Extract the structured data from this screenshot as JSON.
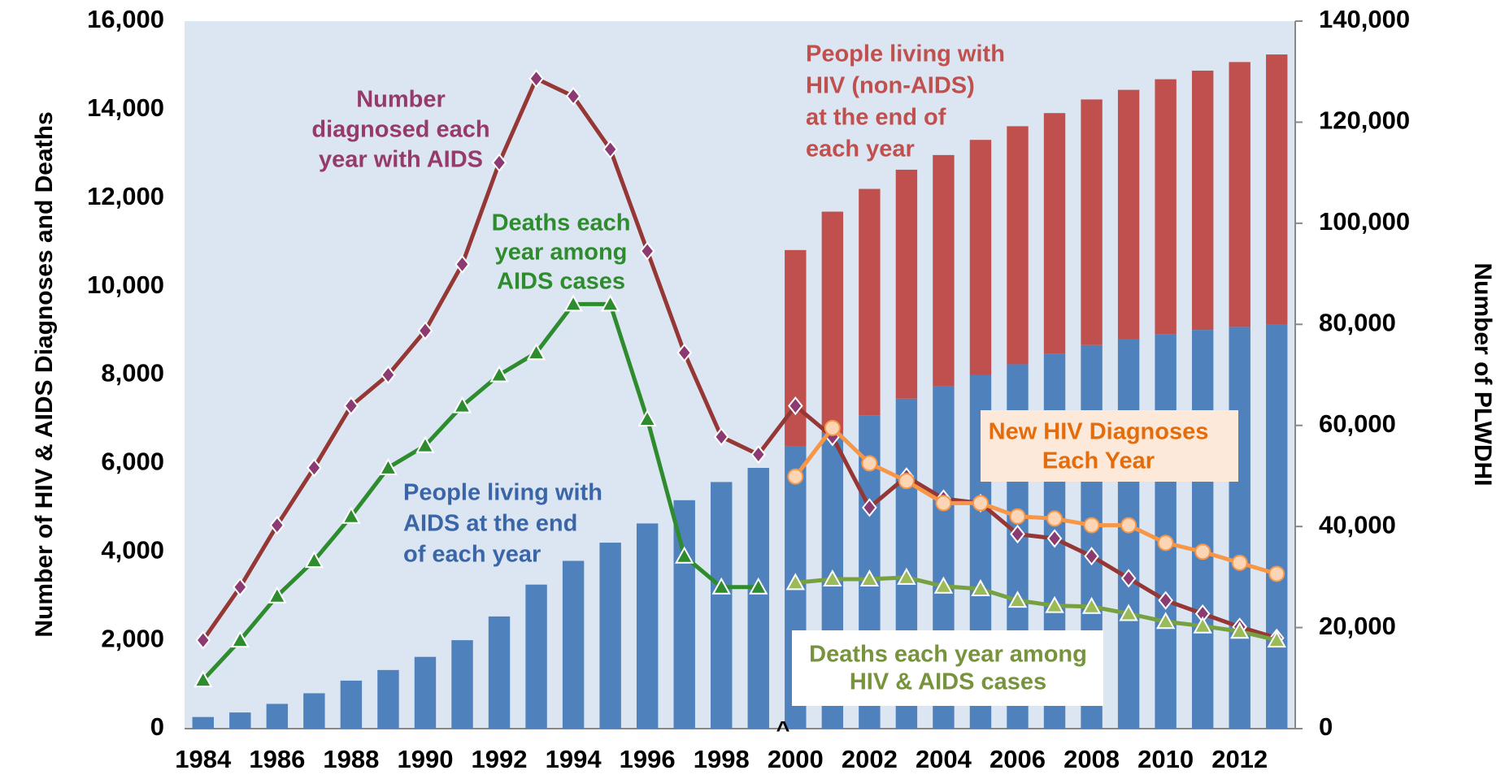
{
  "chart_data": {
    "type": "bar",
    "y_label": "Number of HIV & AIDS Diagnoses and Deaths",
    "y2_label": "Number of PLWDHI",
    "categories": [
      "1984",
      null,
      "1986",
      null,
      "1988",
      null,
      "1990",
      null,
      "1992",
      null,
      "1994",
      null,
      "1996",
      null,
      "1998",
      null,
      "2000",
      null,
      "2002",
      null,
      "2004",
      null,
      "2006",
      null,
      "2008",
      null,
      "2010",
      null,
      "2012",
      null
    ],
    "ylim": [
      0,
      16000
    ],
    "yticks": [
      0,
      {
        "value": 2000,
        "label": "2,000"
      },
      {
        "value": 4000,
        "label": "4,000"
      },
      {
        "value": 6000,
        "label": "6,000"
      },
      {
        "value": 8000,
        "label": "8,000"
      },
      {
        "value": 10000,
        "label": "10,000"
      },
      {
        "value": 12000,
        "label": "12,000"
      },
      {
        "value": 14000,
        "label": "14,000"
      },
      {
        "value": 16000,
        "label": "16,000"
      }
    ],
    "y2lim": [
      0,
      140000
    ],
    "y2ticks": [
      0,
      {
        "value": 20000,
        "label": "20,000"
      },
      {
        "value": 40000,
        "label": "40,000"
      },
      {
        "value": 60000,
        "label": "60,000"
      },
      {
        "value": 80000,
        "label": "80,000"
      },
      {
        "value": 100000,
        "label": "100,000"
      },
      {
        "value": 120000,
        "label": "120,000"
      },
      {
        "value": 140000,
        "label": "140,000"
      }
    ],
    "series": [
      {
        "name": "People living with AIDS at the end of each year",
        "type": "bar",
        "axis": "y2",
        "color": "#4f81bd",
        "values": [
          2300,
          3200,
          4900,
          7000,
          9500,
          11600,
          14200,
          17500,
          22200,
          28500,
          33200,
          36800,
          40600,
          45200,
          48800,
          51600,
          55800,
          58400,
          62000,
          65300,
          67700,
          70000,
          72100,
          74200,
          75900,
          77000,
          78000,
          78900,
          79500,
          79900
        ]
      },
      {
        "name": "People living with HIV (non-AIDS) at the end of each year",
        "type": "bar",
        "axis": "y2",
        "color": "#c0504d",
        "values": [
          null,
          null,
          null,
          null,
          null,
          null,
          null,
          null,
          null,
          null,
          null,
          null,
          null,
          null,
          null,
          null,
          38900,
          43900,
          44800,
          45300,
          45800,
          46500,
          47100,
          47600,
          48600,
          49400,
          50500,
          51300,
          52400,
          53500
        ]
      },
      {
        "name": "Number diagnosed each year with AIDS",
        "type": "line",
        "marker": "diamond",
        "color": "#953735",
        "marker_color": "#8b3a72",
        "values": [
          2000,
          3200,
          4600,
          5900,
          7300,
          8000,
          9000,
          10500,
          12800,
          14700,
          14300,
          13100,
          10800,
          8500,
          6600,
          6200,
          7300,
          6600,
          5000,
          5700,
          5200,
          5100,
          4400,
          4300,
          3900,
          3400,
          2900,
          2600,
          2300,
          2050
        ]
      },
      {
        "name": "Deaths each year among AIDS cases",
        "type": "line",
        "marker": "triangle",
        "color": "#2e8b2e",
        "marker_color": "#2e8b2e",
        "values": [
          1100,
          2000,
          3000,
          3800,
          4800,
          5900,
          6400,
          7300,
          8000,
          8500,
          9600,
          9600,
          7000,
          3900,
          3200,
          3200,
          null,
          null,
          null,
          null,
          null,
          null,
          null,
          null,
          null,
          null,
          null,
          null,
          null,
          null
        ]
      },
      {
        "name": "Deaths each year among HIV & AIDS cases",
        "type": "line",
        "marker": "triangle",
        "color": "#77a040",
        "marker_color": "#9bbb59",
        "values": [
          null,
          null,
          null,
          null,
          null,
          null,
          null,
          null,
          null,
          null,
          null,
          null,
          null,
          null,
          null,
          null,
          3300,
          3380,
          3380,
          3420,
          3220,
          3160,
          2900,
          2780,
          2760,
          2600,
          2420,
          2320,
          2200,
          2000
        ]
      },
      {
        "name": "New HIV Diagnoses Each Year",
        "type": "line",
        "marker": "circle",
        "color": "#f79646",
        "marker_color": "#fcd5b4",
        "values": [
          null,
          null,
          null,
          null,
          null,
          null,
          null,
          null,
          null,
          null,
          null,
          null,
          null,
          null,
          null,
          null,
          5700,
          6800,
          6000,
          5600,
          5100,
          5100,
          4800,
          4750,
          4600,
          4600,
          4200,
          4000,
          3750,
          3500
        ]
      }
    ],
    "annotations": [
      {
        "lines": [
          "Number",
          "diagnosed each",
          "year with AIDS"
        ],
        "color": "#953a6a"
      },
      {
        "lines": [
          "Deaths each",
          "year among",
          "AIDS cases"
        ],
        "color": "#2e8b2e"
      },
      {
        "lines": [
          "People living with",
          "AIDS at the end",
          "of each year"
        ],
        "color": "#3a66a8"
      },
      {
        "lines": [
          "People living with",
          "HIV (non-AIDS)",
          "at the end of",
          "each year"
        ],
        "color": "#c0504d"
      },
      {
        "lines": [
          "New HIV Diagnoses",
          "Each Year"
        ],
        "color": "#e46c0a",
        "box": "#fde9d9"
      },
      {
        "lines": [
          "Deaths each year among",
          "HIV & AIDS cases"
        ],
        "color": "#77933c",
        "box": "#ffffff"
      },
      {
        "lines": [
          "^"
        ],
        "color": "#000000"
      }
    ]
  }
}
